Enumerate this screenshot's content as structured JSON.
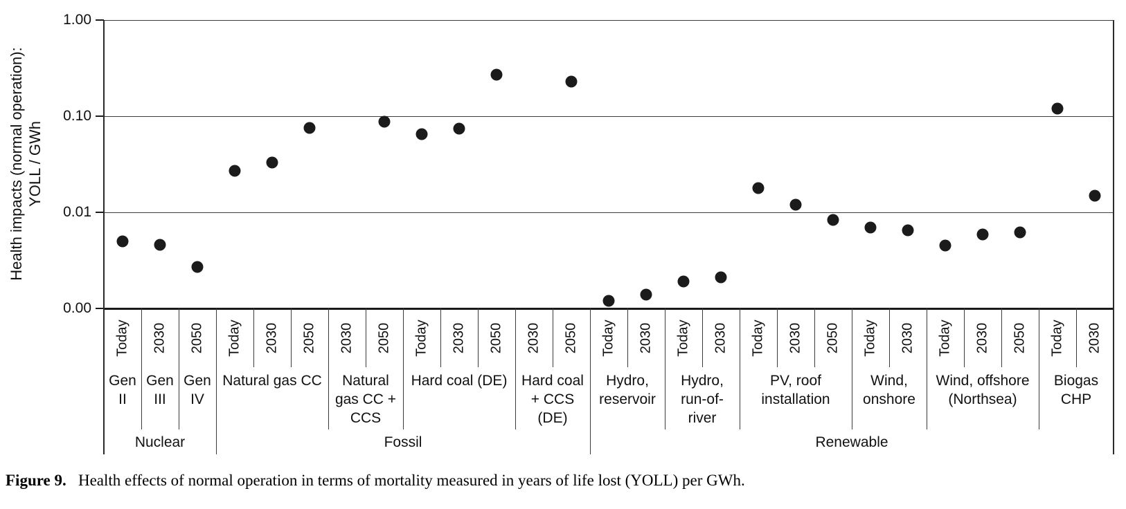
{
  "figure": {
    "caption_label": "Figure 9.",
    "caption_text": "Health effects of normal operation in terms of mortality measured in years of life lost (YOLL) per GWh."
  },
  "chart_data": {
    "type": "scatter",
    "title": "",
    "ylabel_lines": [
      "Health impacts (normal operation):",
      "YOLL / GWh"
    ],
    "xlabel": "",
    "yscale": "log",
    "ylim": [
      0.001,
      1.0
    ],
    "grid": "horizontal-lines-at-ticks",
    "marker": {
      "shape": "circle",
      "color": "#1b1b1b"
    },
    "y_ticks": [
      {
        "label": "1.00",
        "value": 1.0
      },
      {
        "label": "0.10",
        "value": 0.1
      },
      {
        "label": "0.01",
        "value": 0.01
      },
      {
        "label": "0.00",
        "value": 0.001
      }
    ],
    "groups": [
      {
        "label": "Nuclear",
        "technologies": [
          {
            "name": "Gen II",
            "label_lines": [
              "Gen",
              "II"
            ],
            "points": [
              {
                "year": "Today",
                "value": 0.005
              }
            ]
          },
          {
            "name": "Gen III",
            "label_lines": [
              "Gen",
              "III"
            ],
            "points": [
              {
                "year": "2030",
                "value": 0.0046
              }
            ]
          },
          {
            "name": "Gen IV",
            "label_lines": [
              "Gen",
              "IV"
            ],
            "points": [
              {
                "year": "2050",
                "value": 0.0027
              }
            ]
          }
        ]
      },
      {
        "label": "Fossil",
        "technologies": [
          {
            "name": "Natural gas CC",
            "label_lines": [
              "Natural gas CC"
            ],
            "points": [
              {
                "year": "Today",
                "value": 0.027
              },
              {
                "year": "2030",
                "value": 0.033
              },
              {
                "year": "2050",
                "value": 0.075
              }
            ]
          },
          {
            "name": "Natural gas CC + CCS",
            "label_lines": [
              "Natural",
              "gas CC +",
              "CCS"
            ],
            "points": [
              {
                "year": "2030",
                "value": null
              },
              {
                "year": "2050",
                "value": 0.087
              }
            ]
          },
          {
            "name": "Hard coal (DE)",
            "label_lines": [
              "Hard coal (DE)"
            ],
            "points": [
              {
                "year": "Today",
                "value": 0.065
              },
              {
                "year": "2030",
                "value": 0.074
              },
              {
                "year": "2050",
                "value": 0.27
              }
            ]
          },
          {
            "name": "Hard coal + CCS (DE)",
            "label_lines": [
              "Hard coal",
              "+ CCS",
              "(DE)"
            ],
            "points": [
              {
                "year": "2030",
                "value": null
              },
              {
                "year": "2050",
                "value": 0.23
              }
            ]
          }
        ]
      },
      {
        "label": "Renewable",
        "technologies": [
          {
            "name": "Hydro, reservoir",
            "label_lines": [
              "Hydro,",
              "reservoir"
            ],
            "points": [
              {
                "year": "Today",
                "value": 0.0012
              },
              {
                "year": "2030",
                "value": 0.0014
              }
            ]
          },
          {
            "name": "Hydro, run-of-river",
            "label_lines": [
              "Hydro,",
              "run-of-",
              "river"
            ],
            "points": [
              {
                "year": "Today",
                "value": 0.0019
              },
              {
                "year": "2030",
                "value": 0.0021
              }
            ]
          },
          {
            "name": "PV, roof installation",
            "label_lines": [
              "PV, roof",
              "installation"
            ],
            "points": [
              {
                "year": "Today",
                "value": 0.018
              },
              {
                "year": "2030",
                "value": 0.012
              },
              {
                "year": "2050",
                "value": 0.0083
              }
            ]
          },
          {
            "name": "Wind, onshore",
            "label_lines": [
              "Wind,",
              "onshore"
            ],
            "points": [
              {
                "year": "Today",
                "value": 0.007
              },
              {
                "year": "2030",
                "value": 0.0065
              }
            ]
          },
          {
            "name": "Wind, offshore (Northsea)",
            "label_lines": [
              "Wind, offshore",
              "(Northsea)"
            ],
            "points": [
              {
                "year": "Today",
                "value": 0.0045
              },
              {
                "year": "2030",
                "value": 0.0059
              },
              {
                "year": "2050",
                "value": 0.0062
              }
            ]
          },
          {
            "name": "Biogas CHP",
            "label_lines": [
              "Biogas",
              "CHP"
            ],
            "points": [
              {
                "year": "Today",
                "value": 0.12
              },
              {
                "year": "2030",
                "value": 0.015
              }
            ]
          }
        ]
      }
    ]
  }
}
